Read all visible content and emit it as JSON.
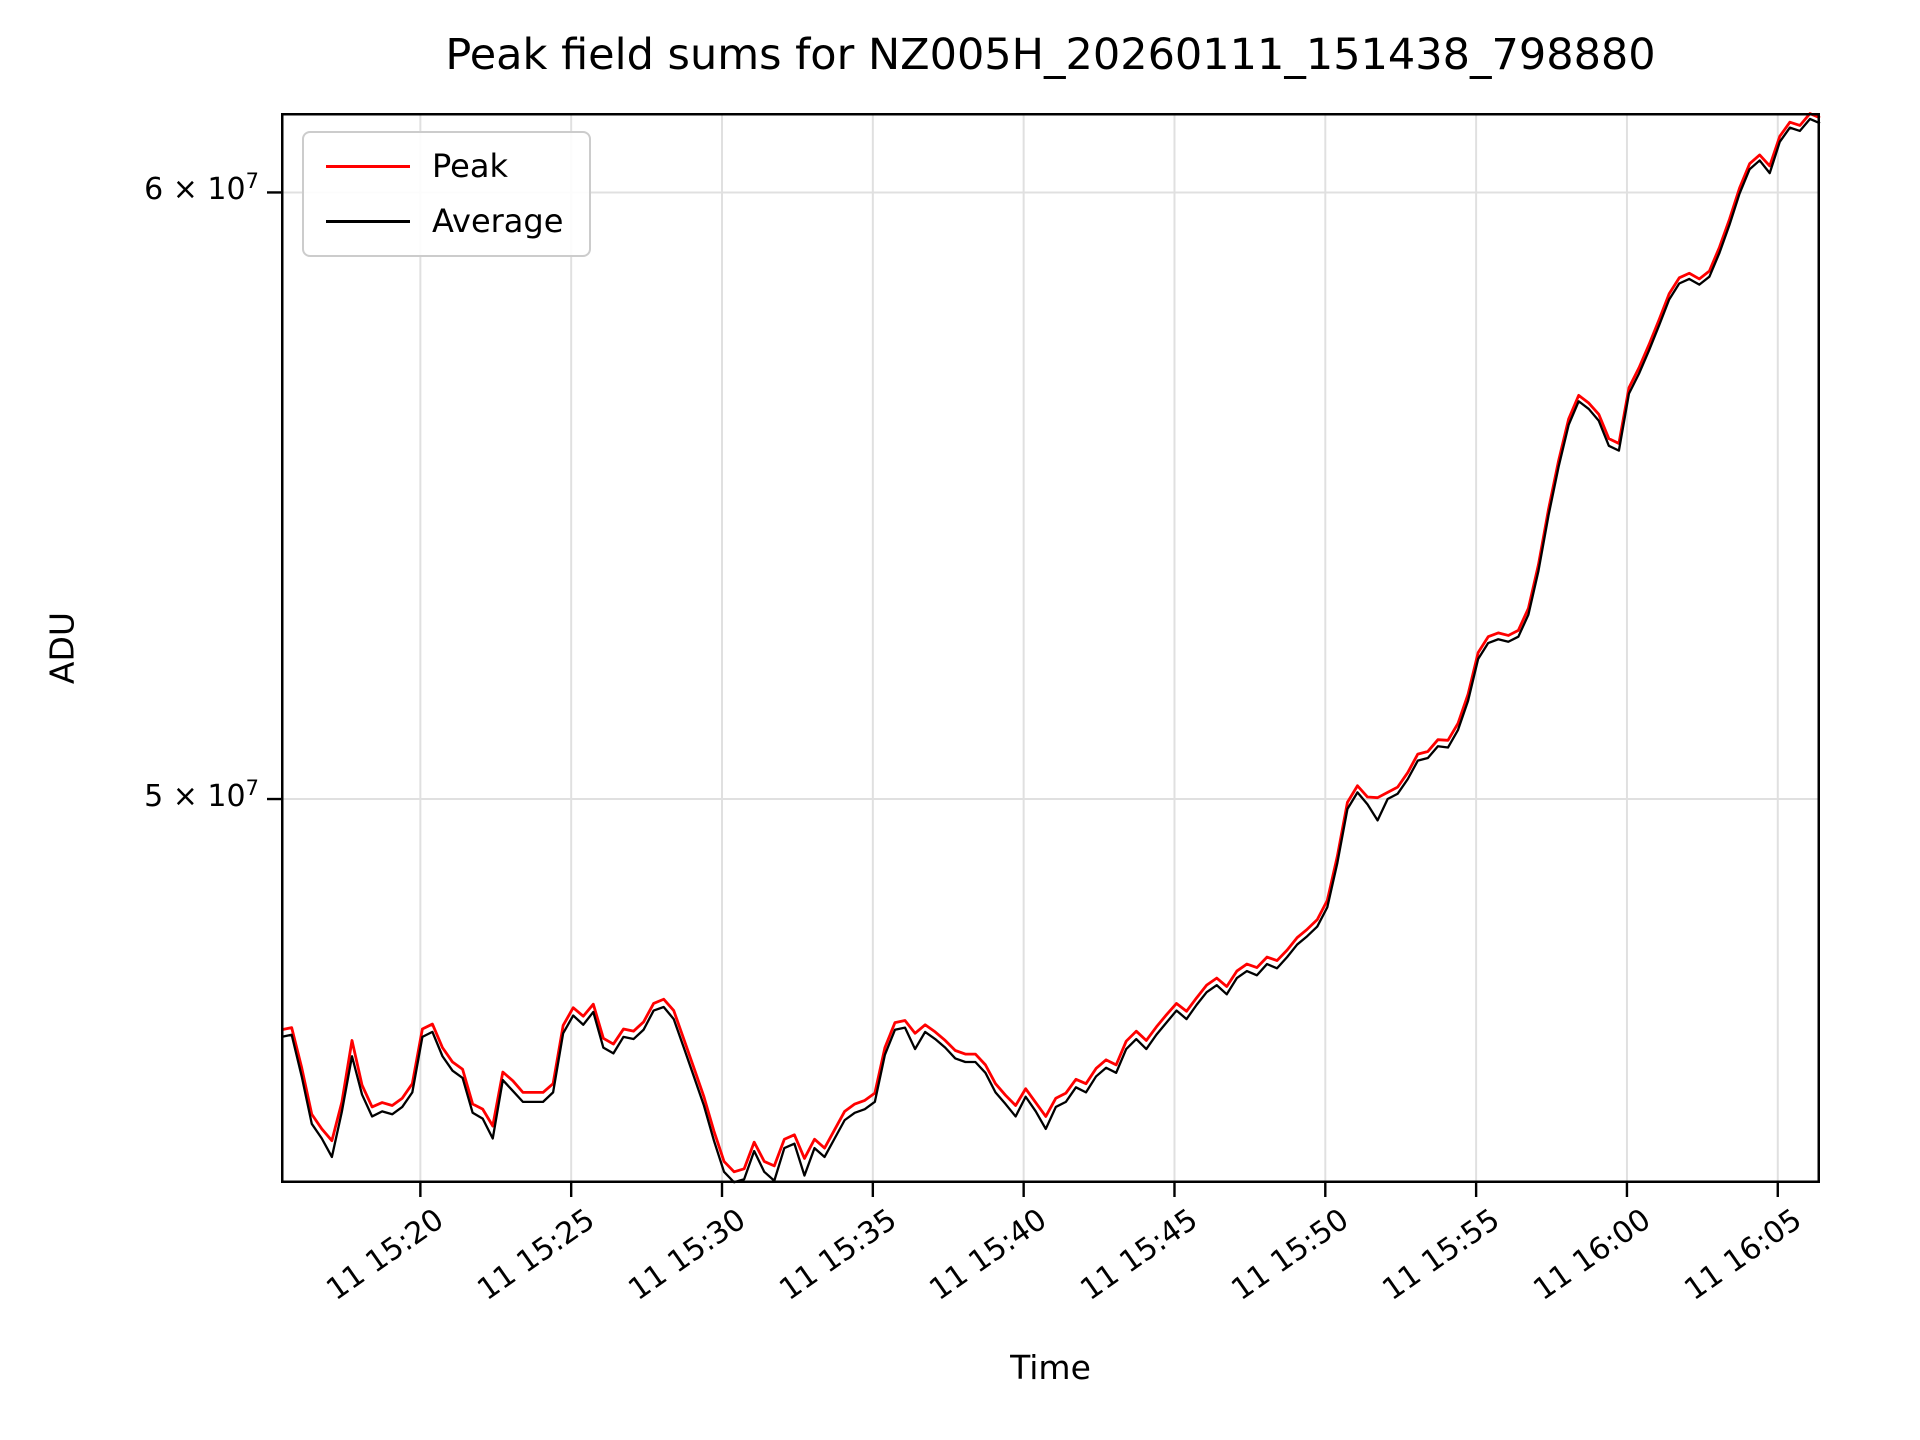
{
  "title": "Peak field sums for NZ005H_20260111_151438_798880",
  "axes": {
    "xlabel": "Time",
    "ylabel": "ADU"
  },
  "legend": [
    {
      "label": "Peak",
      "color": "#ff0000"
    },
    {
      "label": "Average",
      "color": "#000000"
    }
  ],
  "colors": {
    "peak_line": "#ff0000",
    "average_line": "#000000",
    "grid": "#e0e0e0",
    "spine": "#000000",
    "legend_border": "#cccccc"
  },
  "chart_data": {
    "type": "line",
    "title": "Peak field sums for NZ005H_20260111_151438_798880",
    "xlabel": "Time",
    "ylabel": "ADU",
    "y_scale": "log",
    "grid": true,
    "legend_position": "upper left",
    "x_unit": "minutes after 15:00, day 11",
    "xlim": [
      15.38,
      66.4
    ],
    "ylim": [
      44550000.0,
      61450000.0
    ],
    "x_ticks": [
      {
        "t": 20,
        "label": "11 15:20"
      },
      {
        "t": 25,
        "label": "11 15:25"
      },
      {
        "t": 30,
        "label": "11 15:30"
      },
      {
        "t": 35,
        "label": "11 15:35"
      },
      {
        "t": 40,
        "label": "11 15:40"
      },
      {
        "t": 45,
        "label": "11 15:45"
      },
      {
        "t": 50,
        "label": "11 15:50"
      },
      {
        "t": 55,
        "label": "11 15:55"
      },
      {
        "t": 60,
        "label": "11 16:00"
      },
      {
        "t": 65,
        "label": "11 16:05"
      }
    ],
    "y_ticks": [
      {
        "v": 50000000.0,
        "mantissa": "5 × 10",
        "exp": "7"
      },
      {
        "v": 60000000.0,
        "mantissa": "6 × 10",
        "exp": "7"
      }
    ],
    "t_start": 15.4,
    "t_step": 0.3333333,
    "value_scale": 10000000.0,
    "series": [
      {
        "name": "Peak",
        "color": "#ff0000",
        "width": 2.8,
        "values": [
          4.665,
          4.668,
          4.612,
          4.548,
          4.528,
          4.512,
          4.565,
          4.65,
          4.588,
          4.558,
          4.564,
          4.56,
          4.57,
          4.59,
          4.666,
          4.673,
          4.64,
          4.62,
          4.61,
          4.562,
          4.555,
          4.532,
          4.606,
          4.594,
          4.578,
          4.578,
          4.578,
          4.59,
          4.671,
          4.696,
          4.684,
          4.701,
          4.653,
          4.645,
          4.666,
          4.663,
          4.676,
          4.702,
          4.708,
          4.692,
          4.652,
          4.612,
          4.572,
          4.525,
          4.484,
          4.47,
          4.474,
          4.51,
          4.484,
          4.478,
          4.514,
          4.52,
          4.488,
          4.514,
          4.502,
          4.527,
          4.552,
          4.562,
          4.567,
          4.577,
          4.64,
          4.675,
          4.678,
          4.66,
          4.672,
          4.662,
          4.65,
          4.636,
          4.631,
          4.631,
          4.616,
          4.59,
          4.574,
          4.56,
          4.583,
          4.564,
          4.545,
          4.57,
          4.577,
          4.596,
          4.59,
          4.611,
          4.623,
          4.616,
          4.649,
          4.663,
          4.65,
          4.669,
          4.686,
          4.702,
          4.691,
          4.71,
          4.728,
          4.738,
          4.726,
          4.748,
          4.758,
          4.753,
          4.768,
          4.763,
          4.778,
          4.796,
          4.808,
          4.822,
          4.85,
          4.915,
          4.995,
          5.02,
          5.003,
          5.002,
          5.01,
          5.018,
          5.04,
          5.068,
          5.072,
          5.09,
          5.089,
          5.115,
          5.16,
          5.225,
          5.25,
          5.256,
          5.252,
          5.26,
          5.295,
          5.365,
          5.455,
          5.535,
          5.605,
          5.645,
          5.632,
          5.613,
          5.572,
          5.564,
          5.658,
          5.692,
          5.732,
          5.775,
          5.82,
          5.848,
          5.856,
          5.846,
          5.86,
          5.902,
          5.952,
          6.008,
          6.052,
          6.068,
          6.048,
          6.102,
          6.128,
          6.122,
          6.144,
          6.136
        ]
      },
      {
        "name": "Average",
        "color": "#000000",
        "width": 2.3,
        "values": [
          4.655,
          4.658,
          4.6,
          4.535,
          4.515,
          4.49,
          4.552,
          4.628,
          4.575,
          4.545,
          4.552,
          4.548,
          4.558,
          4.578,
          4.655,
          4.662,
          4.628,
          4.608,
          4.598,
          4.55,
          4.542,
          4.515,
          4.595,
          4.58,
          4.565,
          4.565,
          4.565,
          4.578,
          4.66,
          4.685,
          4.672,
          4.69,
          4.64,
          4.632,
          4.655,
          4.652,
          4.665,
          4.692,
          4.697,
          4.68,
          4.64,
          4.6,
          4.56,
          4.512,
          4.47,
          4.456,
          4.46,
          4.498,
          4.47,
          4.458,
          4.502,
          4.508,
          4.465,
          4.502,
          4.49,
          4.515,
          4.54,
          4.55,
          4.555,
          4.565,
          4.63,
          4.665,
          4.668,
          4.638,
          4.662,
          4.652,
          4.64,
          4.625,
          4.62,
          4.62,
          4.605,
          4.578,
          4.562,
          4.545,
          4.572,
          4.552,
          4.528,
          4.558,
          4.565,
          4.585,
          4.578,
          4.6,
          4.612,
          4.605,
          4.638,
          4.652,
          4.638,
          4.658,
          4.675,
          4.692,
          4.68,
          4.7,
          4.718,
          4.728,
          4.715,
          4.738,
          4.748,
          4.742,
          4.758,
          4.752,
          4.768,
          4.786,
          4.798,
          4.812,
          4.84,
          4.905,
          4.985,
          5.01,
          4.992,
          4.968,
          5.0,
          5.008,
          5.03,
          5.058,
          5.062,
          5.08,
          5.078,
          5.105,
          5.15,
          5.215,
          5.24,
          5.246,
          5.242,
          5.25,
          5.285,
          5.355,
          5.445,
          5.525,
          5.595,
          5.635,
          5.622,
          5.602,
          5.56,
          5.552,
          5.648,
          5.682,
          5.722,
          5.765,
          5.81,
          5.838,
          5.846,
          5.836,
          5.85,
          5.892,
          5.942,
          5.998,
          6.042,
          6.058,
          6.035,
          6.092,
          6.118,
          6.112,
          6.134,
          6.126
        ]
      }
    ]
  }
}
